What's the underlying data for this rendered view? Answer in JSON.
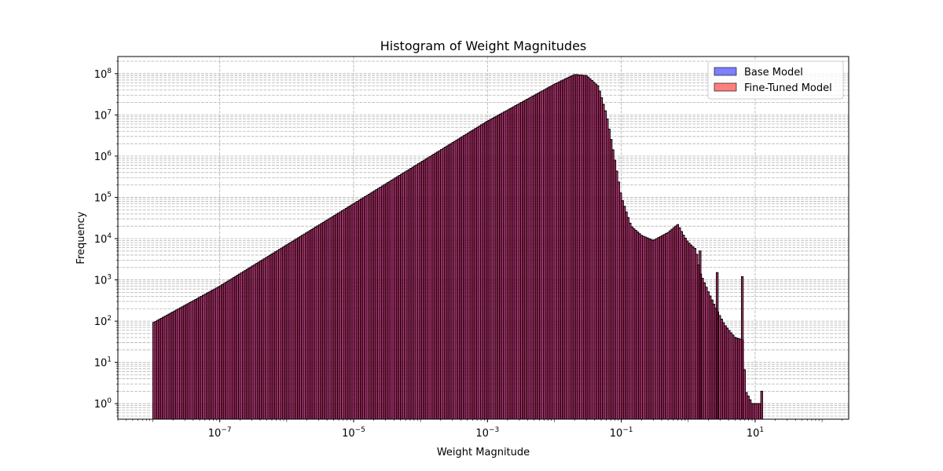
{
  "chart_data": {
    "type": "histogram",
    "title": "Histogram of Weight Magnitudes",
    "xlabel": "Weight Magnitude",
    "ylabel": "Frequency",
    "x_scale": "log",
    "y_scale": "log",
    "xlim": [
      3e-09,
      250
    ],
    "ylim": [
      0.42,
      260000000.0
    ],
    "x_ticks": [
      {
        "value": 1e-07,
        "label_base": "10",
        "label_exp": "−7"
      },
      {
        "value": 1e-05,
        "label_base": "10",
        "label_exp": "−5"
      },
      {
        "value": 0.001,
        "label_base": "10",
        "label_exp": "−3"
      },
      {
        "value": 0.1,
        "label_base": "10",
        "label_exp": "−1"
      },
      {
        "value": 10,
        "label_base": "10",
        "label_exp": "1"
      }
    ],
    "y_ticks": [
      {
        "value": 1,
        "label_base": "10",
        "label_exp": "0"
      },
      {
        "value": 10,
        "label_base": "10",
        "label_exp": "1"
      },
      {
        "value": 100,
        "label_base": "10",
        "label_exp": "2"
      },
      {
        "value": 1000,
        "label_base": "10",
        "label_exp": "3"
      },
      {
        "value": 10000,
        "label_base": "10",
        "label_exp": "4"
      },
      {
        "value": 100000,
        "label_base": "10",
        "label_exp": "5"
      },
      {
        "value": 1000000,
        "label_base": "10",
        "label_exp": "6"
      },
      {
        "value": 10000000,
        "label_base": "10",
        "label_exp": "7"
      },
      {
        "value": 100000000,
        "label_base": "10",
        "label_exp": "8"
      }
    ],
    "grid": true,
    "legend_position": "top-right",
    "series": [
      {
        "name": "Base Model",
        "color": "#0000ff",
        "alpha": 0.5
      },
      {
        "name": "Fine-Tuned Model",
        "color": "#ff0000",
        "alpha": 0.5
      }
    ],
    "distribution_points": [
      [
        1e-08,
        90
      ],
      [
        1e-07,
        700
      ],
      [
        1e-06,
        7000
      ],
      [
        1e-05,
        70000
      ],
      [
        0.0001,
        700000
      ],
      [
        0.001,
        7000000
      ],
      [
        0.01,
        55000000
      ],
      [
        0.02,
        95000000
      ],
      [
        0.03,
        90000000
      ],
      [
        0.045,
        50000000
      ],
      [
        0.06,
        10000000
      ],
      [
        0.08,
        800000
      ],
      [
        0.1,
        100000
      ],
      [
        0.14,
        20000
      ],
      [
        0.2,
        12000
      ],
      [
        0.3,
        9000
      ],
      [
        0.5,
        14000
      ],
      [
        0.7,
        22000
      ],
      [
        0.85,
        12000
      ],
      [
        1.0,
        8000
      ],
      [
        1.3,
        5500
      ],
      [
        1.5,
        1500
      ],
      [
        2.0,
        500
      ],
      [
        2.6,
        200
      ],
      [
        3.5,
        80
      ],
      [
        5.0,
        40
      ],
      [
        6.5,
        35
      ],
      [
        7.2,
        2
      ],
      [
        9.0,
        1
      ],
      [
        12.0,
        1
      ]
    ],
    "spikes": [
      [
        1.5,
        5000
      ],
      [
        2.7,
        1500
      ],
      [
        6.4,
        1200
      ],
      [
        12.5,
        2
      ]
    ]
  }
}
